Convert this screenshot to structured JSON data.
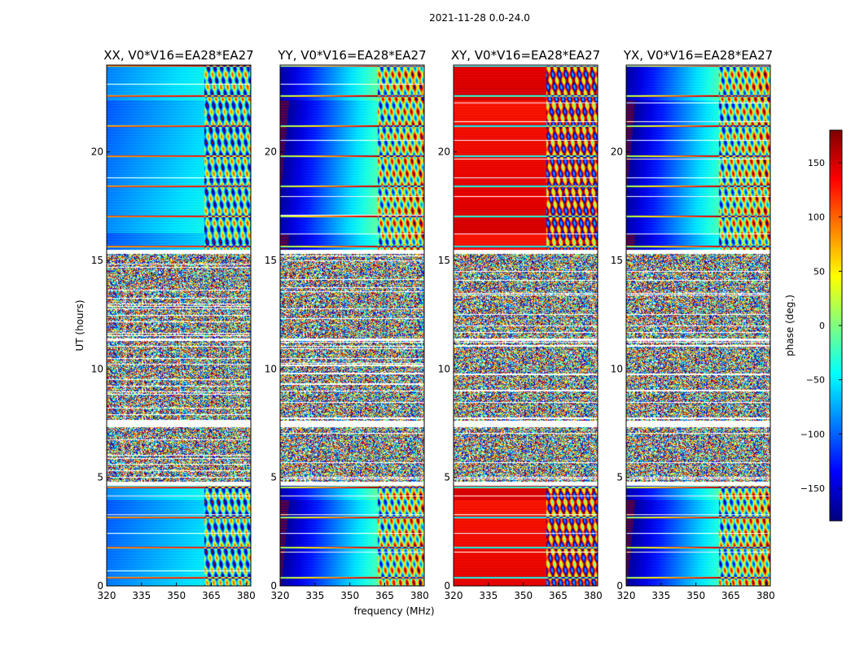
{
  "chart_data": {
    "type": "heatmap",
    "suptitle": "2021-11-28 0.0-24.0",
    "xlabel": "frequency (MHz)",
    "ylabel": "UT (hours)",
    "xlim": [
      320,
      382
    ],
    "ylim": [
      0,
      24
    ],
    "xticks": [
      320,
      335,
      350,
      365,
      380
    ],
    "yticks": [
      0,
      5,
      10,
      15,
      20
    ],
    "colorbar": {
      "label": "phase (deg.)",
      "min": -180,
      "max": 180,
      "ticks": [
        150,
        100,
        50,
        0,
        -50,
        -100,
        -150
      ],
      "tick_labels": [
        "150",
        "100",
        "50",
        "0",
        "−50",
        "−100",
        "−150"
      ],
      "colormap": "jet"
    },
    "panels": [
      {
        "title": "XX, V0*V16=EA28*EA27",
        "pol": "XX",
        "base_phase_deg": -95,
        "slope_deg": 65,
        "stripe_start_mhz": 362
      },
      {
        "title": "YY, V0*V16=EA28*EA27",
        "pol": "YY",
        "base_phase_deg": -175,
        "slope_deg": 230,
        "stripe_start_mhz": 362
      },
      {
        "title": "XY, V0*V16=EA28*EA27",
        "pol": "XY",
        "base_phase_deg": 140,
        "slope_deg": 0,
        "stripe_start_mhz": 360
      },
      {
        "title": "YX, V0*V16=EA28*EA27",
        "pol": "YX",
        "base_phase_deg": -175,
        "slope_deg": 230,
        "stripe_start_mhz": 360
      }
    ],
    "coherent_ut_ranges": [
      [
        0,
        4.6
      ],
      [
        15.5,
        24
      ]
    ],
    "flagged_ut_ranges": [
      [
        4.6,
        4.8
      ],
      [
        7.3,
        7.6
      ],
      [
        15.3,
        15.5
      ],
      [
        11.3,
        11.4
      ]
    ]
  }
}
